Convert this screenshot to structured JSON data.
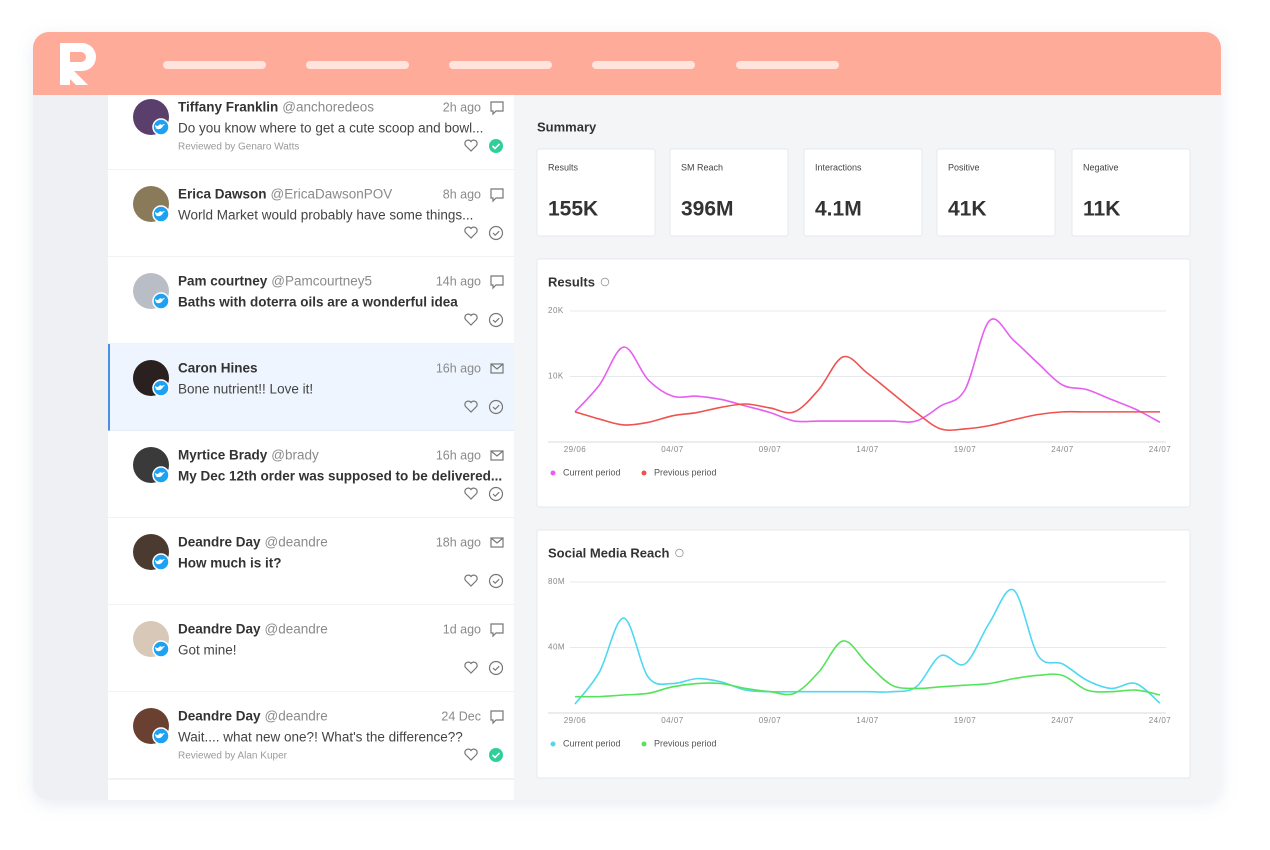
{
  "feed": {
    "items": [
      {
        "name": "Tiffany Franklin",
        "handle": "@anchoredeos",
        "time": "2h ago",
        "text": "Do you know where to get a cute scoop and bowl...",
        "reviewed": "Reviewed by Genaro Watts"
      },
      {
        "name": "Erica Dawson",
        "handle": "@EricaDawsonPOV",
        "time": "8h ago",
        "text": "World Market would probably have some things..."
      },
      {
        "name": "Pam courtney",
        "handle": "@Pamcourtney5",
        "time": "14h ago",
        "text": "Baths with doterra oils are a wonderful idea",
        "unread": true
      },
      {
        "name": "Caron Hines",
        "time": "16h ago",
        "text": "Bone nutrient!! Love it!",
        "selected": true,
        "mail": true
      },
      {
        "name": "Myrtice Brady",
        "handle": "@brady",
        "time": "16h ago",
        "text": "My Dec 12th order was supposed to be delivered...",
        "unread": true,
        "mail": true
      },
      {
        "name": "Deandre Day",
        "handle": "@deandre",
        "time": "18h ago",
        "text": "How much is it?",
        "unread": true,
        "mail": true
      },
      {
        "name": "Deandre Day",
        "handle": "@deandre",
        "time": "1d ago",
        "text": "Got mine!"
      },
      {
        "name": "Deandre Day",
        "handle": "@deandre",
        "time": "24 Dec",
        "text": "Wait.... what new one?! What's the difference??",
        "reviewed": "Reviewed by Alan Kuper"
      }
    ]
  },
  "summary": {
    "title": "Summary",
    "cards": [
      {
        "label": "Results",
        "value": "155K"
      },
      {
        "label": "SM Reach",
        "value": "396M"
      },
      {
        "label": "Interactions",
        "value": "4.1M"
      },
      {
        "label": "Positive",
        "value": "41K"
      },
      {
        "label": "Negative",
        "value": "11K"
      }
    ]
  },
  "chart_data": [
    {
      "type": "line",
      "title": "Results",
      "categories": [
        "29/06",
        null,
        null,
        null,
        "04/07",
        null,
        null,
        null,
        "09/07",
        null,
        null,
        null,
        "14/07",
        null,
        null,
        null,
        "19/07",
        null,
        null,
        null,
        "24/07",
        null,
        null,
        null,
        "24/07"
      ],
      "ylim": [
        0,
        20000
      ],
      "yticks": [
        {
          "value": 10000,
          "label": "10K"
        },
        {
          "value": 20000,
          "label": "20K"
        }
      ],
      "grid": true,
      "series": [
        {
          "name": "Current period",
          "color": "#e65ff0",
          "values": [
            4600,
            8700,
            14500,
            9500,
            7000,
            7000,
            6500,
            5500,
            4500,
            3200,
            3200,
            3200,
            3200,
            3200,
            3200,
            5500,
            8000,
            18500,
            15500,
            12000,
            8700,
            8000,
            6500,
            5000,
            3000
          ]
        },
        {
          "name": "Previous period",
          "color": "#f0524f",
          "values": [
            4600,
            3500,
            2600,
            3000,
            4000,
            4500,
            5300,
            5800,
            5200,
            4600,
            8000,
            13000,
            10500,
            7500,
            4500,
            2000,
            2000,
            2500,
            3400,
            4200,
            4600,
            4600,
            4600,
            4600,
            4600
          ]
        }
      ]
    },
    {
      "type": "line",
      "title": "Social Media Reach",
      "categories": [
        "29/06",
        null,
        null,
        null,
        "04/07",
        null,
        null,
        null,
        "09/07",
        null,
        null,
        null,
        "14/07",
        null,
        null,
        null,
        "19/07",
        null,
        null,
        null,
        "24/07",
        null,
        null,
        null,
        "24/07"
      ],
      "ylim": [
        0,
        80000000
      ],
      "yticks": [
        {
          "value": 40000000,
          "label": "40M"
        },
        {
          "value": 80000000,
          "label": "80M"
        }
      ],
      "grid": true,
      "series": [
        {
          "name": "Current period",
          "color": "#4fd8f0",
          "values": [
            5500000,
            25000000,
            58000000,
            22000000,
            18000000,
            21000000,
            19000000,
            14000000,
            13000000,
            13000000,
            13000000,
            13000000,
            13000000,
            13000000,
            16000000,
            35000000,
            30000000,
            55000000,
            75000000,
            35000000,
            30000000,
            20000000,
            15000000,
            18000000,
            6000000
          ]
        },
        {
          "name": "Previous period",
          "color": "#55e35a",
          "values": [
            10000000,
            10000000,
            11000000,
            12000000,
            16000000,
            18000000,
            18000000,
            15000000,
            13000000,
            12000000,
            25000000,
            44000000,
            30000000,
            17000000,
            15000000,
            16000000,
            17000000,
            18000000,
            21000000,
            23000000,
            23000000,
            14000000,
            13000000,
            14000000,
            11000000
          ]
        }
      ]
    }
  ]
}
